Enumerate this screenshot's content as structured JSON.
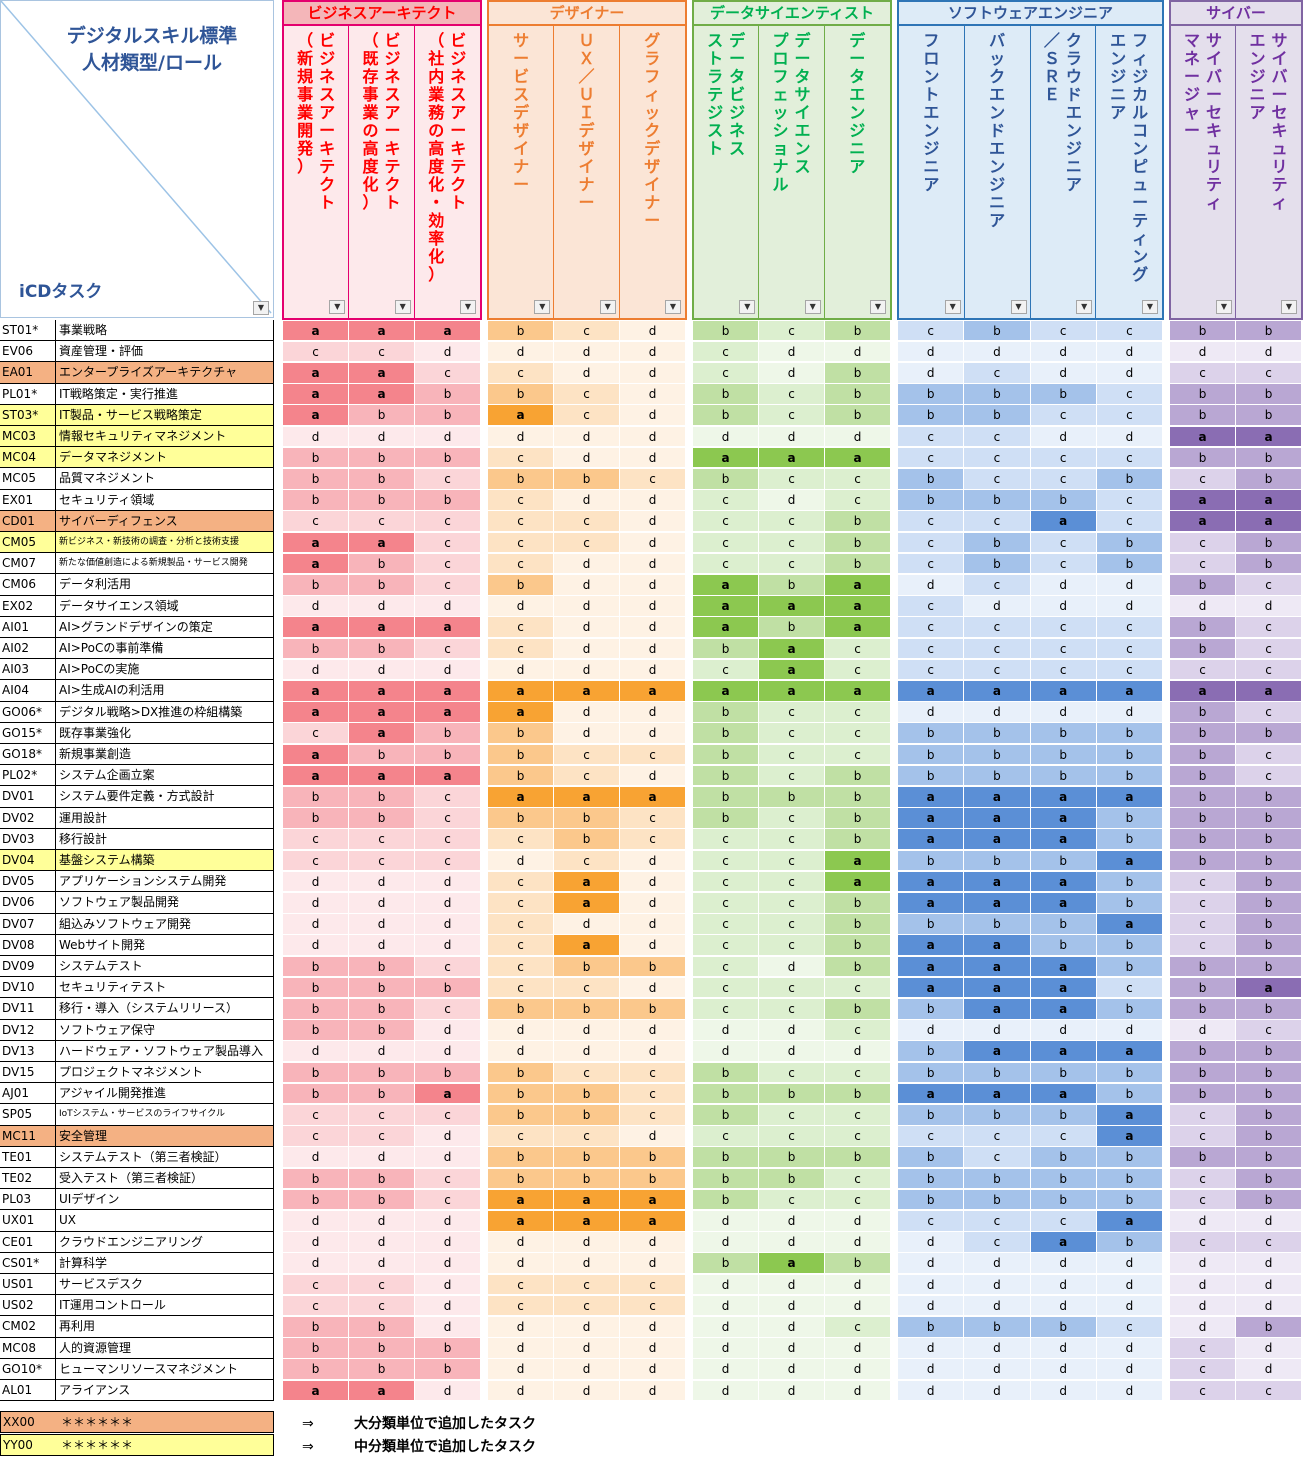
{
  "corner": {
    "title_line1": "デジタルスキル標準",
    "title_line2": "人材類型/ロール",
    "subtitle": "iCDタスク"
  },
  "filter_glyph": "▼",
  "groups": [
    {
      "title": "ビジネスアーキテクト",
      "color": "#ff0000",
      "border": "#e4006e",
      "head_bg": "#f4b183",
      "roles": [
        {
          "lines": [
            "ビジネスアーキテクト",
            "（新規事業開発）"
          ]
        },
        {
          "lines": [
            "ビジネスアーキテクト",
            "（既存事業の高度化）"
          ]
        },
        {
          "lines": [
            "ビジネスアーキテクト",
            "（社内業務の高度化・効率化）"
          ]
        }
      ],
      "shades": {
        "a": "#f4848c",
        "b": "#f8b4ba",
        "c": "#fbd5d8",
        "d": "#fde9eb"
      }
    },
    {
      "title": "デザイナー",
      "color": "#ed7d31",
      "border": "#ed7d31",
      "head_bg": "#fbe5d6",
      "roles": [
        {
          "lines": [
            "サービスデザイナー"
          ]
        },
        {
          "lines": [
            "ＵＸ／ＵＩデザイナー"
          ]
        },
        {
          "lines": [
            "グラフィックデザイナー"
          ]
        }
      ],
      "shades": {
        "a": "#f8a333",
        "b": "#fbc88c",
        "c": "#fde3c4",
        "d": "#fef2e4"
      }
    },
    {
      "title": "データサイエンティスト",
      "color": "#00b050",
      "border": "#70ad47",
      "head_bg": "#e2efda",
      "roles": [
        {
          "lines": [
            "データビジネス",
            "ストラテジスト"
          ]
        },
        {
          "lines": [
            "データサイエンス",
            "プロフェッショナル"
          ]
        },
        {
          "lines": [
            "データエンジニア"
          ]
        }
      ],
      "shades": {
        "a": "#8cc850",
        "b": "#c0e0a4",
        "c": "#dcefcf",
        "d": "#eef7e8"
      }
    },
    {
      "title": "ソフトウェアエンジニア",
      "color": "#2f5597",
      "border": "#2e75b6",
      "head_bg": "#ddebf7",
      "roles": [
        {
          "lines": [
            "フロントエンジニア"
          ]
        },
        {
          "lines": [
            "バックエンドエンジニア"
          ]
        },
        {
          "lines": [
            "クラウドエンジニア",
            "／ＳＲＥ"
          ]
        },
        {
          "lines": [
            "フィジカルコンピューティング",
            "エンジニア"
          ]
        }
      ],
      "shades": {
        "a": "#5b8fd6",
        "b": "#a4c2ea",
        "c": "#cfdff5",
        "d": "#e8f0fa"
      }
    },
    {
      "title": "サイバー",
      "color": "#7030a0",
      "border": "#8064a2",
      "head_bg": "#e4dfec",
      "roles": [
        {
          "lines": [
            "サイバーセキュリティ",
            "マネージャー"
          ]
        },
        {
          "lines": [
            "サイバーセキュリティ",
            "エンジニア"
          ]
        }
      ],
      "shades": {
        "a": "#8a6db3",
        "b": "#b9a7d3",
        "c": "#dcd2ea",
        "d": "#eee9f5"
      }
    }
  ],
  "row_highlight": {
    "orange": "#f4b183",
    "yellow": "#ffff99"
  },
  "tasks": [
    {
      "code": "ST01*",
      "name": "事業戦略",
      "hl": "",
      "v": "aaa bcd bcb cbcc bb"
    },
    {
      "code": "EV06",
      "name": "資産管理・評価",
      "hl": "",
      "v": "ccd ddd cdd dddd dd"
    },
    {
      "code": "EA01",
      "name": "エンタープライズアーキテクチャ",
      "hl": "orange",
      "v": "aac cdd cdb dcdd cc"
    },
    {
      "code": "PL01*",
      "name": "IT戦略策定・実行推進",
      "hl": "",
      "v": "aab bcd bcb bbbc bb"
    },
    {
      "code": "ST03*",
      "name": "IT製品・サービス戦略策定",
      "hl": "yellow",
      "v": "abb acd bcb bbcc bb"
    },
    {
      "code": "MC03",
      "name": "情報セキュリティマネジメント",
      "hl": "yellow",
      "v": "ddd ddd ddd ccdd aa"
    },
    {
      "code": "MC04",
      "name": "データマネジメント",
      "hl": "yellow",
      "v": "bbb cdd aaa cccc bb"
    },
    {
      "code": "MC05",
      "name": "品質マネジメント",
      "hl": "",
      "v": "bbc bbc bcc bccb cb"
    },
    {
      "code": "EX01",
      "name": "セキュリティ領域",
      "hl": "",
      "v": "bbb cdd cdc bbbc aa"
    },
    {
      "code": "CD01",
      "name": "サイバーディフェンス",
      "hl": "orange",
      "v": "ccc ccd ccb ccac aa"
    },
    {
      "code": "CM05",
      "name": "新ビジネス・新技術の調査・分析と技術支援",
      "hl": "yellow",
      "v": "aac ccd ccb cbcb cb"
    },
    {
      "code": "CM07",
      "name": "新たな価値創造による新規製品・サービス開発",
      "hl": "",
      "v": "abc cdd ccb cbcb cb"
    },
    {
      "code": "CM06",
      "name": "データ利活用",
      "hl": "",
      "v": "bbc bdd aba dcdd bc"
    },
    {
      "code": "EX02",
      "name": "データサイエンス領域",
      "hl": "",
      "v": "ddd ddd aaa cddd dd"
    },
    {
      "code": "AI01",
      "name": "AI>グランドデザインの策定",
      "hl": "",
      "v": "aaa cdd aba cccc bc"
    },
    {
      "code": "AI02",
      "name": "AI>PoCの事前準備",
      "hl": "",
      "v": "bbc cdd bac cccc bc"
    },
    {
      "code": "AI03",
      "name": "AI>PoCの実施",
      "hl": "",
      "v": "ddd ddd cac cccc cc"
    },
    {
      "code": "AI04",
      "name": "AI>生成AIの利活用",
      "hl": "",
      "v": "aaa aaa aaa aaaa aa"
    },
    {
      "code": "GO06*",
      "name": "デジタル戦略>DX推進の枠組構築",
      "hl": "",
      "v": "aaa add bcc dddd bc"
    },
    {
      "code": "GO15*",
      "name": "既存事業強化",
      "hl": "",
      "v": "cab bdd bcc bbbb bb"
    },
    {
      "code": "GO18*",
      "name": "新規事業創造",
      "hl": "",
      "v": "abb bcc bcc bbbb bc"
    },
    {
      "code": "PL02*",
      "name": "システム企画立案",
      "hl": "",
      "v": "aaa bcd bcb bbbb bc"
    },
    {
      "code": "DV01",
      "name": "システム要件定義・方式設計",
      "hl": "",
      "v": "bbc aaa bbb aaaa bb"
    },
    {
      "code": "DV02",
      "name": "運用設計",
      "hl": "",
      "v": "bbc bbc bcb aaab bb"
    },
    {
      "code": "DV03",
      "name": "移行設計",
      "hl": "",
      "v": "ccc cbc ccb aaab bb"
    },
    {
      "code": "DV04",
      "name": "基盤システム構築",
      "hl": "yellow",
      "v": "ccc dcd cca bbba bb"
    },
    {
      "code": "DV05",
      "name": "アプリケーションシステム開発",
      "hl": "",
      "v": "ddd cad cca aaab cb"
    },
    {
      "code": "DV06",
      "name": "ソフトウェア製品開発",
      "hl": "",
      "v": "ddd cad ccb aaab cb"
    },
    {
      "code": "DV07",
      "name": "組込みソフトウェア開発",
      "hl": "",
      "v": "ddd cdd ccb bbba cb"
    },
    {
      "code": "DV08",
      "name": "Webサイト開発",
      "hl": "",
      "v": "ddd cad ccb aabb cb"
    },
    {
      "code": "DV09",
      "name": "システムテスト",
      "hl": "",
      "v": "bbc cbb cdb aaab bb"
    },
    {
      "code": "DV10",
      "name": "セキュリティテスト",
      "hl": "",
      "v": "bbb ccd ccc aaac ba"
    },
    {
      "code": "DV11",
      "name": "移行・導入（システムリリース）",
      "hl": "",
      "v": "bbc bbb ccb baab bb"
    },
    {
      "code": "DV12",
      "name": "ソフトウェア保守",
      "hl": "",
      "v": "bbd ddd ddc dddd dc"
    },
    {
      "code": "DV13",
      "name": "ハードウェア・ソフトウェア製品導入",
      "hl": "",
      "v": "ddd ddd ddd baaa bb"
    },
    {
      "code": "DV15",
      "name": "プロジェクトマネジメント",
      "hl": "",
      "v": "bbb bcc bcc bbbb bb"
    },
    {
      "code": "AJ01",
      "name": "アジャイル開発推進",
      "hl": "",
      "v": "bba bbc bbb aaab bb"
    },
    {
      "code": "SP05",
      "name": "IoTシステム・サービスのライフサイクル",
      "hl": "",
      "v": "ccc bbc bcc bbba cb"
    },
    {
      "code": "MC11",
      "name": "安全管理",
      "hl": "orange",
      "v": "ccd ccd ccc ccca cb"
    },
    {
      "code": "TE01",
      "name": "システムテスト（第三者検証）",
      "hl": "",
      "v": "ddd bbb bbb bcbb bb"
    },
    {
      "code": "TE02",
      "name": "受入テスト（第三者検証）",
      "hl": "",
      "v": "bbc bbb bbc bbbb cb"
    },
    {
      "code": "PL03",
      "name": "UIデザイン",
      "hl": "",
      "v": "bbc aaa bcc bbbb cb"
    },
    {
      "code": "UX01",
      "name": "UX",
      "hl": "",
      "v": "ddd aaa ddd ccca dd"
    },
    {
      "code": "CE01",
      "name": "クラウドエンジニアリング",
      "hl": "",
      "v": "ddd ddd ddd dcab cc"
    },
    {
      "code": "CS01*",
      "name": "計算科学",
      "hl": "",
      "v": "ddd ddd bab dddd dd"
    },
    {
      "code": "US01",
      "name": "サービスデスク",
      "hl": "",
      "v": "ccd ccc ddd dddd dd"
    },
    {
      "code": "US02",
      "name": "IT運用コントロール",
      "hl": "",
      "v": "ccd ccc ddd dddd dd"
    },
    {
      "code": "CM02",
      "name": "再利用",
      "hl": "",
      "v": "bbd ddd ddc bbbc db"
    },
    {
      "code": "MC08",
      "name": "人的資源管理",
      "hl": "",
      "v": "bbb ddd ddd dddd cd"
    },
    {
      "code": "GO10*",
      "name": "ヒューマンリソースマネジメント",
      "hl": "",
      "v": "bbb ddd ddd dddd cd"
    },
    {
      "code": "AL01",
      "name": "アライアンス",
      "hl": "",
      "v": "aad ddd ddd dddd cc"
    }
  ],
  "legend": [
    {
      "code": "XX00",
      "stars": "＊＊＊＊＊＊",
      "hl": "orange",
      "arrow": "⇒",
      "note": "大分類単位で追加したタスク"
    },
    {
      "code": "YY00",
      "stars": "＊＊＊＊＊＊",
      "hl": "yellow",
      "arrow": "⇒",
      "note": "中分類単位で追加したタスク"
    }
  ]
}
